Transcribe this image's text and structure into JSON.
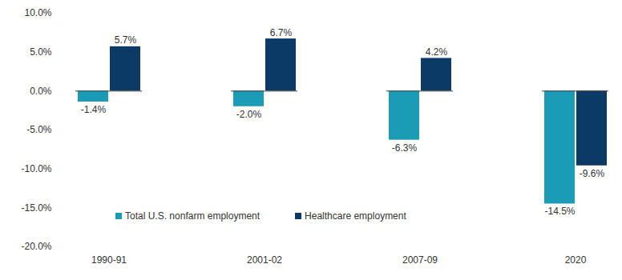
{
  "chart_data": {
    "type": "bar",
    "categories": [
      "1990-91",
      "2001-02",
      "2007-09",
      "2020"
    ],
    "series": [
      {
        "name": "Total U.S. nonfarm employment",
        "color": "#1a9bb6",
        "values": [
          -1.4,
          -2.0,
          -6.3,
          -14.5
        ],
        "value_labels": [
          "-1.4%",
          "-2.0%",
          "-6.3%",
          "-14.5%"
        ]
      },
      {
        "name": "Healthcare employment",
        "color": "#0b3a66",
        "values": [
          5.7,
          6.7,
          4.2,
          -9.6
        ],
        "value_labels": [
          "5.7%",
          "6.7%",
          "4.2%",
          "-9.6%"
        ]
      }
    ],
    "ylim": [
      -20,
      10
    ],
    "yticks": [
      {
        "value": -20,
        "label": "-20.0%"
      },
      {
        "value": -15,
        "label": "-15.0%"
      },
      {
        "value": -10,
        "label": "-10.0%"
      },
      {
        "value": -5,
        "label": "-5.0%"
      },
      {
        "value": 0,
        "label": "0.0%"
      },
      {
        "value": 5,
        "label": "5.0%"
      },
      {
        "value": 10,
        "label": "10.0%"
      }
    ],
    "grid": false,
    "legend": "bottom-left",
    "data_labels": true
  }
}
